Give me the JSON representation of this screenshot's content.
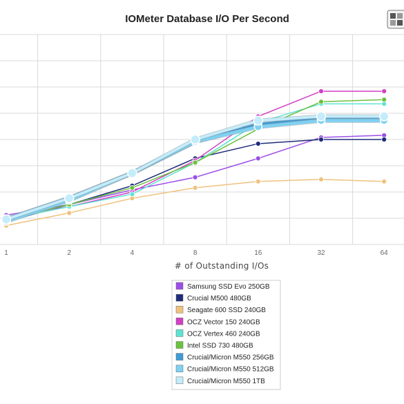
{
  "chart_data": {
    "type": "line",
    "title": "IOMeter Database I/O Per Second",
    "xlabel": "# of Outstanding I/Os",
    "ylabel": "",
    "x_scale": "log2",
    "categories": [
      "1",
      "2",
      "4",
      "8",
      "16",
      "32",
      "64"
    ],
    "ylim": [
      0,
      100
    ],
    "grid": true,
    "legend_position": "bottom-center",
    "series": [
      {
        "name": "Samsung SSD Evo 250GB",
        "color": "#9b4ee8",
        "values": [
          14,
          19,
          26,
          32,
          41,
          51,
          52
        ]
      },
      {
        "name": "Crucial M500 480GB",
        "color": "#1f2b7a",
        "values": [
          11,
          19,
          28,
          41,
          48,
          50,
          50
        ]
      },
      {
        "name": "Seagate 600 SSD 240GB",
        "color": "#efc27e",
        "values": [
          9,
          15,
          22,
          27,
          30,
          31,
          30
        ]
      },
      {
        "name": "OCZ Vector 150 240GB",
        "color": "#d23fc5",
        "values": [
          13,
          18,
          25,
          40,
          61,
          73,
          73
        ]
      },
      {
        "name": "OCZ Vertex 460 240GB",
        "color": "#5fe3d3",
        "values": [
          12,
          18,
          24,
          39,
          58,
          67,
          67
        ]
      },
      {
        "name": "Intel SSD 730 480GB",
        "color": "#6ac23e",
        "values": [
          12,
          19,
          27,
          39,
          55,
          68,
          69
        ]
      },
      {
        "name": "Crucial/Micron M550 256GB",
        "color": "#3e9bd6",
        "values": [
          12,
          22,
          34,
          49,
          57,
          60,
          60
        ]
      },
      {
        "name": "Crucial/Micron M550 512GB",
        "color": "#7fd1f2",
        "values": [
          11,
          21,
          34,
          49,
          56,
          59,
          59
        ]
      },
      {
        "name": "Crucial/Micron M550 1TB",
        "color": "#c4ecfb",
        "values": [
          12,
          22,
          34,
          50,
          59,
          61,
          61
        ]
      }
    ]
  },
  "logo": {
    "name": "site-logo-icon"
  }
}
